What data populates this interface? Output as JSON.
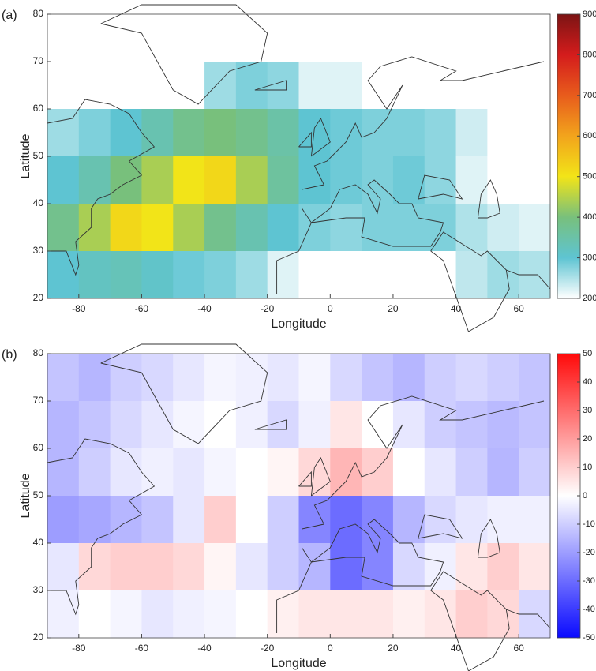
{
  "chart_data": [
    {
      "type": "heatmap",
      "label": "(a)",
      "xlabel": "Longitude",
      "ylabel": "Latitude",
      "x": [
        -85,
        -75,
        -65,
        -55,
        -45,
        -35,
        -25,
        -15,
        -5,
        5,
        15,
        25,
        35,
        45,
        55,
        65
      ],
      "y": [
        75,
        65,
        55,
        45,
        35,
        25
      ],
      "values": [
        [
          200,
          200,
          200,
          200,
          200,
          200,
          200,
          200,
          200,
          200,
          200,
          200,
          200,
          200,
          200,
          200
        ],
        [
          200,
          200,
          200,
          200,
          200,
          260,
          280,
          270,
          220,
          220,
          200,
          200,
          200,
          200,
          200,
          200
        ],
        [
          260,
          280,
          300,
          340,
          380,
          400,
          380,
          350,
          300,
          290,
          280,
          280,
          270,
          230,
          200,
          200
        ],
        [
          300,
          340,
          400,
          440,
          500,
          520,
          440,
          360,
          300,
          290,
          280,
          290,
          270,
          220,
          200,
          200
        ],
        [
          380,
          440,
          520,
          500,
          440,
          380,
          340,
          300,
          280,
          270,
          280,
          280,
          280,
          250,
          230,
          220
        ],
        [
          300,
          320,
          330,
          310,
          290,
          280,
          260,
          220,
          200,
          200,
          200,
          200,
          200,
          240,
          260,
          250
        ]
      ],
      "xlim": [
        -90,
        70
      ],
      "ylim": [
        20,
        80
      ],
      "xticks": [
        -80,
        -60,
        -40,
        -20,
        0,
        20,
        40,
        60
      ],
      "yticks": [
        20,
        30,
        40,
        50,
        60,
        70,
        80
      ],
      "colorbar": {
        "lim": [
          200,
          900
        ],
        "ticks": [
          200,
          300,
          400,
          500,
          600,
          700,
          800,
          900
        ],
        "colors": [
          "#ffffff",
          "#5ec4d2",
          "#78c07c",
          "#f2e418",
          "#f2a41c",
          "#e85c1c",
          "#d41c1c",
          "#7c1414"
        ]
      }
    },
    {
      "type": "heatmap",
      "label": "(b)",
      "xlabel": "Longitude",
      "ylabel": "Latitude",
      "x": [
        -85,
        -75,
        -65,
        -55,
        -45,
        -35,
        -25,
        -15,
        -5,
        5,
        15,
        25,
        35,
        45,
        55,
        65
      ],
      "y": [
        75,
        65,
        55,
        45,
        35,
        25
      ],
      "values": [
        [
          -12,
          -15,
          -10,
          -8,
          -5,
          -2,
          -3,
          -5,
          -2,
          -8,
          -12,
          -15,
          -10,
          -8,
          -10,
          -12
        ],
        [
          -15,
          -12,
          -8,
          -5,
          -2,
          0,
          -3,
          -8,
          -3,
          5,
          0,
          -5,
          -10,
          -12,
          -14,
          -12
        ],
        [
          -15,
          -10,
          -5,
          -3,
          -5,
          -2,
          0,
          2,
          8,
          15,
          10,
          0,
          -5,
          -10,
          -15,
          -10
        ],
        [
          -20,
          -18,
          -15,
          -12,
          -5,
          10,
          0,
          -10,
          -25,
          -30,
          -25,
          -15,
          -8,
          -5,
          -3,
          -3
        ],
        [
          -5,
          8,
          10,
          10,
          8,
          2,
          -5,
          -10,
          -15,
          -30,
          -25,
          -8,
          -3,
          5,
          10,
          5
        ],
        [
          -3,
          0,
          -2,
          -5,
          -3,
          -2,
          0,
          3,
          5,
          5,
          5,
          3,
          5,
          10,
          8,
          -8
        ]
      ],
      "xlim": [
        -90,
        70
      ],
      "ylim": [
        20,
        80
      ],
      "xticks": [
        -80,
        -60,
        -40,
        -20,
        0,
        20,
        40,
        60
      ],
      "yticks": [
        20,
        30,
        40,
        50,
        60,
        70,
        80
      ],
      "colorbar": {
        "lim": [
          -50,
          50
        ],
        "ticks": [
          -50,
          -40,
          -30,
          -20,
          -10,
          0,
          10,
          20,
          30,
          40,
          50
        ],
        "colors": [
          "#0a0aff",
          "#ffffff",
          "#ff0a0a"
        ]
      }
    }
  ]
}
